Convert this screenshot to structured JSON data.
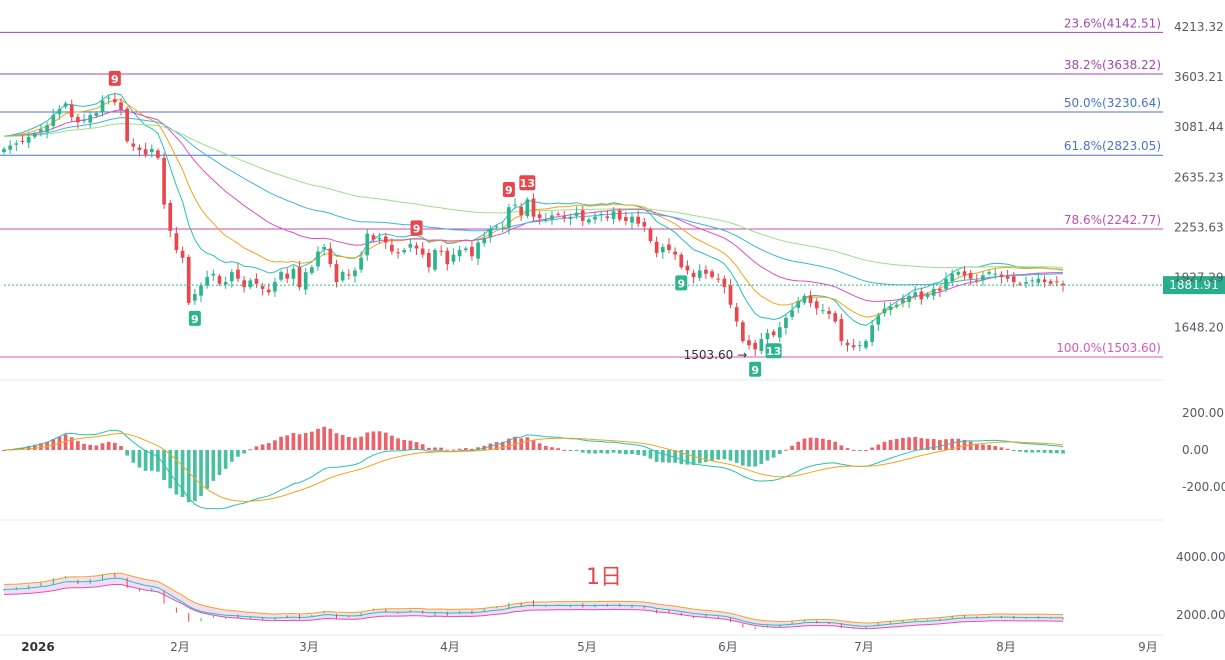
{
  "chart_data": {
    "type": "candlestick",
    "timeframe_label": "1日",
    "current_price": "1881.91",
    "low_marker": "1503.60",
    "price_axis": {
      "ticks": [
        4213.32,
        3603.21,
        3081.44,
        2635.23,
        2253.63,
        1927.29,
        1648.2
      ],
      "tick_labels": [
        "4213.32",
        "3603.21",
        "3081.44",
        "2635.23",
        "2253.63",
        "1927.29",
        "1648.20"
      ],
      "scale": "log",
      "range": [
        1503.6,
        4213.32
      ]
    },
    "fibonacci": [
      {
        "label": "23.6%(4142.51)",
        "price": 4142.51,
        "color": "#a347b5"
      },
      {
        "label": "38.2%(3638.22)",
        "price": 3638.22,
        "color": "#a347b5"
      },
      {
        "label": "50.0%(3230.64)",
        "price": 3230.64,
        "color": "#4a73c9"
      },
      {
        "label": "61.8%(2823.05)",
        "price": 2823.05,
        "color": "#4a73c9"
      },
      {
        "label": "78.6%(2242.77)",
        "price": 2242.77,
        "color": "#c44fa8"
      },
      {
        "label": "100.0%(1503.60)",
        "price": 1503.6,
        "color": "#d85bb0"
      }
    ],
    "x_axis": {
      "labels": [
        "2026",
        "2月",
        "3月",
        "4月",
        "5月",
        "6月",
        "7月",
        "8月",
        "9月"
      ]
    },
    "macd_axis": {
      "tick_labels": [
        "200.00",
        "0.00",
        "-200.00"
      ],
      "ticks": [
        200,
        0,
        -200
      ]
    },
    "lower_axis": {
      "tick_labels": [
        "4000.00",
        "2000.00"
      ],
      "ticks": [
        4000,
        2000
      ]
    },
    "td_sequential": [
      {
        "label": "9",
        "index": 18,
        "kind": "sell"
      },
      {
        "label": "9",
        "index": 67,
        "kind": "sell"
      },
      {
        "label": "9",
        "index": 82,
        "kind": "sell"
      },
      {
        "label": "13",
        "index": 85,
        "kind": "sell"
      },
      {
        "label": "9",
        "index": 31,
        "kind": "buy"
      },
      {
        "label": "9",
        "index": 110,
        "kind": "buy"
      },
      {
        "label": "9",
        "index": 122,
        "kind": "buy"
      },
      {
        "label": "13",
        "index": 125,
        "kind": "buy"
      }
    ],
    "closes": [
      2880,
      2910,
      2930,
      2950,
      2990,
      3020,
      3060,
      3100,
      3200,
      3260,
      3320,
      3180,
      3130,
      3150,
      3200,
      3220,
      3350,
      3380,
      3330,
      3250,
      2950,
      2900,
      2870,
      2830,
      2880,
      2800,
      2420,
      2230,
      2100,
      2050,
      1780,
      1830,
      1880,
      1930,
      1950,
      1890,
      1900,
      1960,
      1920,
      1870,
      1910,
      1890,
      1860,
      1840,
      1900,
      1960,
      1920,
      1980,
      1870,
      1960,
      1990,
      2090,
      2120,
      2010,
      1900,
      1960,
      1940,
      1970,
      2050,
      2210,
      2170,
      2180,
      2150,
      2090,
      2080,
      2100,
      2140,
      2110,
      2070,
      1990,
      2100,
      2090,
      2010,
      2070,
      2100,
      2110,
      2060,
      2150,
      2180,
      2240,
      2260,
      2250,
      2400,
      2420,
      2340,
      2460,
      2330,
      2320,
      2310,
      2340,
      2350,
      2320,
      2330,
      2360,
      2300,
      2310,
      2330,
      2350,
      2320,
      2370,
      2310,
      2300,
      2330,
      2280,
      2260,
      2160,
      2080,
      2120,
      2100,
      2070,
      1990,
      1970,
      1930,
      1970,
      1950,
      1930,
      1920,
      1870,
      1770,
      1680,
      1580,
      1560,
      1540,
      1590,
      1620,
      1610,
      1650,
      1700,
      1740,
      1790,
      1820,
      1780,
      1750,
      1740,
      1720,
      1680,
      1580,
      1560,
      1550,
      1560,
      1580,
      1660,
      1710,
      1750,
      1760,
      1770,
      1800,
      1820,
      1840,
      1800,
      1830,
      1860,
      1850,
      1920,
      1950,
      1960,
      1940,
      1920,
      1910,
      1940,
      1960,
      1950,
      1930,
      1920,
      1900,
      1890,
      1900,
      1910,
      1920,
      1900,
      1890,
      1900,
      1881.91
    ]
  }
}
